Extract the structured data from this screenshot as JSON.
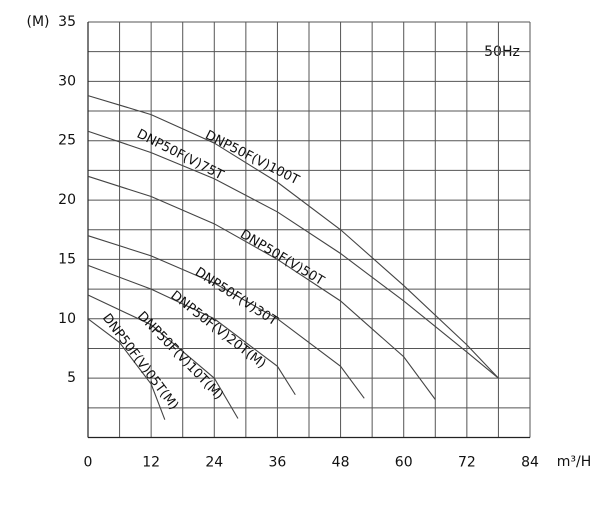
{
  "chart_data": {
    "type": "line",
    "y_label": "(M)",
    "x_label": "m³/H",
    "annotation": "50Hz",
    "xlim": [
      0,
      84
    ],
    "ylim": [
      0,
      35
    ],
    "xticks": [
      0,
      12,
      24,
      36,
      48,
      60,
      72,
      84
    ],
    "yticks": [
      5,
      10,
      15,
      20,
      25,
      30,
      35
    ],
    "xgrid": [
      6,
      18,
      30,
      42,
      54,
      66,
      78
    ],
    "ygrid": [
      2.5,
      7.5,
      12.5,
      17.5,
      22.5,
      27.5,
      32.5
    ],
    "grid": true,
    "series": [
      {
        "name": "DNP50F(V)100T",
        "color": "#444444",
        "x": [
          0,
          12,
          24,
          36,
          48,
          60,
          72,
          78
        ],
        "values": [
          28.8,
          27.2,
          24.8,
          21.5,
          17.5,
          12.8,
          7.8,
          5
        ]
      },
      {
        "name": "DNP50F(V)75T",
        "color": "#444444",
        "x": [
          0,
          12,
          24,
          36,
          48,
          60,
          72,
          78
        ],
        "values": [
          25.8,
          24,
          21.8,
          19,
          15.5,
          11.5,
          7.2,
          5
        ]
      },
      {
        "name": "DNP50F(V)50T",
        "color": "#444444",
        "x": [
          0,
          12,
          24,
          36,
          48,
          60,
          66
        ],
        "values": [
          22,
          20.3,
          18,
          15,
          11.5,
          6.8,
          3.2
        ]
      },
      {
        "name": "DNP50F(V)30T",
        "color": "#444444",
        "x": [
          0,
          12,
          24,
          36,
          48,
          52.5
        ],
        "values": [
          17,
          15.3,
          13,
          10,
          6,
          3.3
        ]
      },
      {
        "name": "DNP50F(V)20T(M)",
        "color": "#444444",
        "x": [
          0,
          12,
          24,
          36,
          39.4
        ],
        "values": [
          14.5,
          12.5,
          10,
          6,
          3.6
        ]
      },
      {
        "name": "DNP50F(V)10T(M)",
        "color": "#444444",
        "x": [
          0,
          12,
          24,
          28.5
        ],
        "values": [
          12,
          9.5,
          5,
          1.6
        ]
      },
      {
        "name": "DNP50F(V)05T(M)",
        "color": "#444444",
        "x": [
          0,
          6,
          12,
          14.6
        ],
        "values": [
          10,
          8,
          4.5,
          1.5
        ]
      }
    ]
  }
}
